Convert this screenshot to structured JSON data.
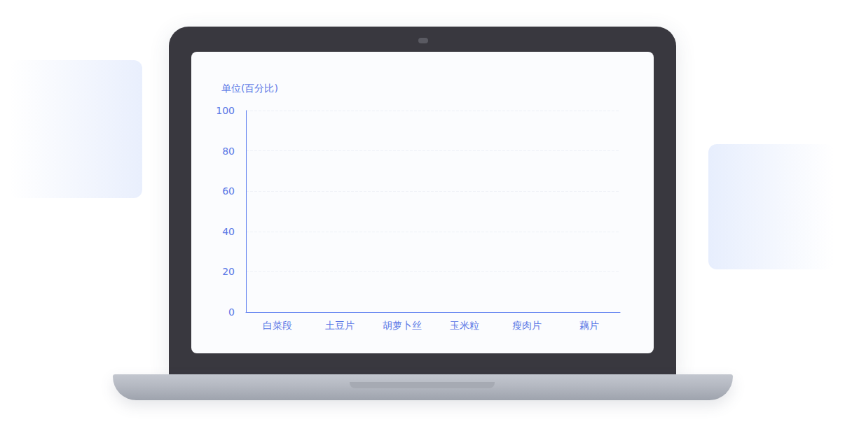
{
  "chart_data": {
    "type": "bar",
    "y_label": "单位(百分比)",
    "categories": [
      "白菜段",
      "土豆片",
      "胡萝卜丝",
      "玉米粒",
      "瘦肉片",
      "藕片"
    ],
    "values": [
      0,
      0,
      0,
      0,
      0,
      0
    ],
    "color": "#5b7cf0",
    "ylim": [
      0,
      100
    ],
    "yticks": [
      0,
      20,
      40,
      60,
      80,
      100
    ],
    "grid": true
  }
}
